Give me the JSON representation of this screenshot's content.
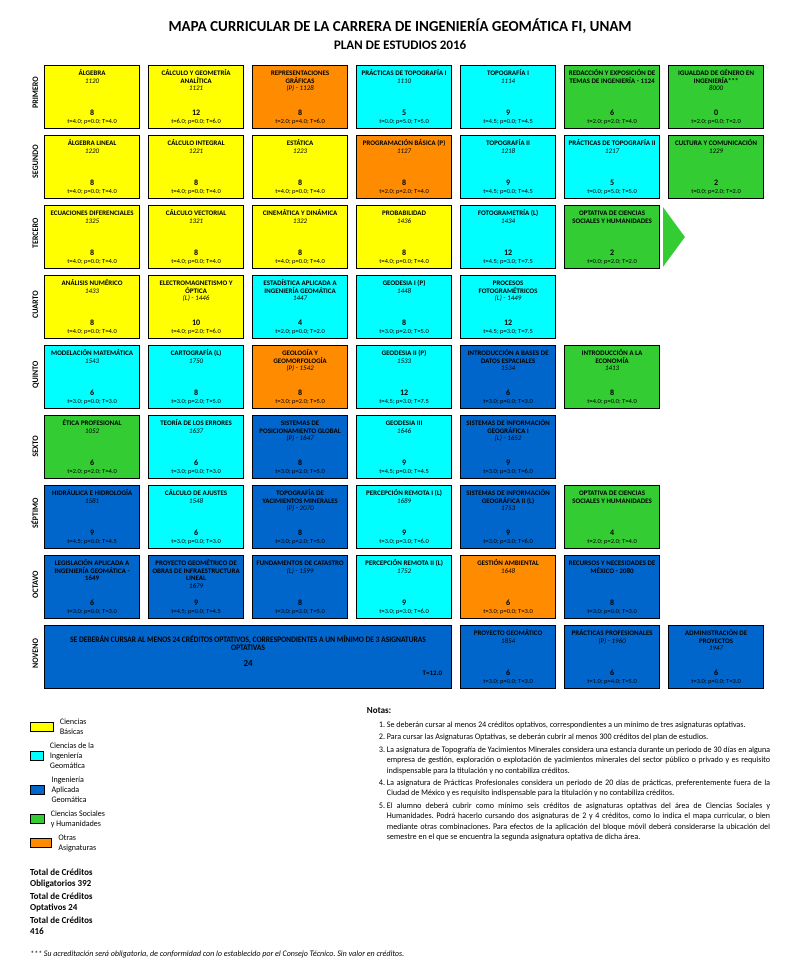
{
  "header": {
    "title": "MAPA CURRICULAR DE LA CARRERA DE INGENIERÍA GEOMÁTICA FI, UNAM",
    "subtitle": "PLAN DE ESTUDIOS 2016"
  },
  "colheaders": [
    "Ciencias Básicas",
    "Ciencias de la Ingeniería Geomática",
    "Ingeniería Aplicada Geomática",
    "Ciencias Sociales y Humanidades",
    "Otras Asignaturas"
  ],
  "colors": {
    "basicas": "#ffff00",
    "ciencias_ing": "#00ffff",
    "aplicada": "#0066cc",
    "sociales": "#33cc33",
    "otras": "#ff8c00"
  },
  "rows": [
    {
      "sem": "PRIMERO",
      "cells": [
        {
          "c": "ybg",
          "name": "ÁLGEBRA",
          "code": "1120",
          "cr": "8",
          "hrs": "t=4.0; p=0.0; T=4.0"
        },
        {
          "c": "ybg",
          "name": "CÁLCULO Y GEOMETRÍA ANALÍTICA",
          "code": "1121",
          "cr": "12",
          "hrs": "t=6.0; p=0.0; T=6.0"
        },
        {
          "c": "orange",
          "name": "REPRESENTACIONES GRÁFICAS",
          "code": "(P) - 1128",
          "cr": "8",
          "hrs": "t=2.0; p=4.0; T=6.0"
        },
        {
          "c": "cyan",
          "name": "PRÁCTICAS DE TOPOGRAFÍA I",
          "code": "1110",
          "cr": "5",
          "hrs": "t=0.0; p=5.0; T=5.0"
        },
        {
          "c": "cyan",
          "name": "TOPOGRAFÍA I",
          "code": "1114",
          "cr": "9",
          "hrs": "t=4.5; p=0.0; T=4.5"
        },
        {
          "c": "green",
          "name": "REDACCIÓN Y EXPOSICIÓN DE TEMAS DE INGENIERÍA - 1124",
          "code": "",
          "cr": "6",
          "hrs": "t=2.0; p=2.0; T=4.0"
        },
        {
          "c": "green",
          "name": "IGUALDAD DE GÉNERO EN INGENIERÍA***",
          "code": "8000",
          "cr": "0",
          "hrs": "t=2.0; p=0.0; T=2.0"
        }
      ]
    },
    {
      "sem": "SEGUNDO",
      "cells": [
        {
          "c": "ybg",
          "name": "ÁLGEBRA LINEAL",
          "code": "1220",
          "cr": "8",
          "hrs": "t=4.0; p=0.0; T=4.0"
        },
        {
          "c": "ybg",
          "name": "CÁLCULO INTEGRAL",
          "code": "1221",
          "cr": "8",
          "hrs": "t=4.0; p=0.0; T=4.0"
        },
        {
          "c": "ybg",
          "name": "ESTÁTICA",
          "code": "1223",
          "cr": "8",
          "hrs": "t=4.0; p=0.0; T=4.0"
        },
        {
          "c": "orange",
          "name": "PROGRAMACIÓN BÁSICA (P)",
          "code": "1127",
          "cr": "8",
          "hrs": "t=2.0; p=2.0; T=4.0"
        },
        {
          "c": "cyan",
          "name": "TOPOGRAFÍA II",
          "code": "1218",
          "cr": "9",
          "hrs": "t=4.5; p=0.0; T=4.5"
        },
        {
          "c": "cyan",
          "name": "PRÁCTICAS DE TOPOGRAFÍA II",
          "code": "1217",
          "cr": "5",
          "hrs": "t=0.0; p=5.0; T=5.0"
        },
        {
          "c": "green",
          "name": "CULTURA Y COMUNICACIÓN",
          "code": "1229",
          "cr": "2",
          "hrs": "t=0.0; p=2.0; T=2.0"
        }
      ]
    },
    {
      "sem": "TERCERO",
      "arrow": true,
      "cells": [
        {
          "c": "ybg",
          "name": "ECUACIONES DIFERENCIALES",
          "code": "1325",
          "cr": "8",
          "hrs": "t=4.0; p=0.0; T=4.0"
        },
        {
          "c": "ybg",
          "name": "CÁLCULO VECTORIAL",
          "code": "1321",
          "cr": "8",
          "hrs": "t=4.0; p=0.0; T=4.0"
        },
        {
          "c": "ybg",
          "name": "CINEMÁTICA Y DINÁMICA",
          "code": "1322",
          "cr": "8",
          "hrs": "t=4.0; p=0.0; T=4.0"
        },
        {
          "c": "ybg",
          "name": "PROBABILIDAD",
          "code": "1436",
          "cr": "8",
          "hrs": "t=4.0; p=0.0; T=4.0"
        },
        {
          "c": "cyan",
          "name": "FOTOGRAMETRÍA (L)",
          "code": "1434",
          "cr": "12",
          "hrs": "t=4.5; p=3.0; T=7.5"
        },
        {
          "c": "green",
          "name": "OPTATIVA DE CIENCIAS SOCIALES Y HUMANIDADES",
          "code": "",
          "cr": "2",
          "hrs": "t=0.0; p=2.0; T=2.0"
        },
        {
          "c": "empty"
        }
      ]
    },
    {
      "sem": "CUARTO",
      "cells": [
        {
          "c": "ybg",
          "name": "ANÁLISIS NUMÉRICO",
          "code": "1433",
          "cr": "8",
          "hrs": "t=4.0; p=0.0; T=4.0"
        },
        {
          "c": "ybg",
          "name": "ELECTROMAGNETISMO Y ÓPTICA",
          "code": "(L) - 1446",
          "cr": "10",
          "hrs": "t=4.0; p=2.0; T=6.0"
        },
        {
          "c": "cyan",
          "name": "ESTADÍSTICA APLICADA A INGENIERÍA GEOMÁTICA",
          "code": "1447",
          "cr": "4",
          "hrs": "t=2.0; p=0.0; T=2.0"
        },
        {
          "c": "cyan",
          "name": "GEODESIA I (P)",
          "code": "1448",
          "cr": "8",
          "hrs": "t=3.0; p=2.0; T=5.0"
        },
        {
          "c": "cyan",
          "name": "PROCESOS FOTOGRAMÉTRICOS",
          "code": "(L) - 1449",
          "cr": "12",
          "hrs": "t=4.5; p=3.0; T=7.5"
        },
        {
          "c": "empty"
        },
        {
          "c": "empty"
        }
      ]
    },
    {
      "sem": "QUINTO",
      "cells": [
        {
          "c": "cyan",
          "name": "MODELACIÓN MATEMÁTICA",
          "code": "1543",
          "cr": "6",
          "hrs": "t=3.0; p=0.0; T=3.0"
        },
        {
          "c": "cyan",
          "name": "CARTOGRAFÍA (L)",
          "code": "1750",
          "cr": "8",
          "hrs": "t=3.0; p=2.0; T=5.0"
        },
        {
          "c": "orange",
          "name": "GEOLOGÍA Y GEOMORFOLOGÍA",
          "code": "(P) - 1542",
          "cr": "8",
          "hrs": "t=3.0; p=2.0; T=5.0"
        },
        {
          "c": "cyan",
          "name": "GEODESIA II (P)",
          "code": "1533",
          "cr": "12",
          "hrs": "t=4.5; p=3.0; T=7.5"
        },
        {
          "c": "blue",
          "name": "INTRODUCCIÓN A BASES DE DATOS ESPACIALES",
          "code": "1534",
          "cr": "6",
          "hrs": "t=3.0; p=0.0; T=3.0"
        },
        {
          "c": "green",
          "name": "INTRODUCCIÓN A LA ECONOMÍA",
          "code": "1413",
          "cr": "8",
          "hrs": "t=4.0; p=0.0; T=4.0"
        },
        {
          "c": "empty"
        }
      ]
    },
    {
      "sem": "SEXTO",
      "cells": [
        {
          "c": "green",
          "name": "ÉTICA PROFESIONAL",
          "code": "1052",
          "cr": "6",
          "hrs": "t=2.0; p=2.0; T=4.0"
        },
        {
          "c": "cyan",
          "name": "TEORÍA DE LOS ERRORES",
          "code": "1637",
          "cr": "6",
          "hrs": "t=3.0; p=0.0; T=3.0"
        },
        {
          "c": "blue",
          "name": "SISTEMAS DE POSICIONAMIENTO GLOBAL",
          "code": "(P) - 1647",
          "cr": "8",
          "hrs": "t=3.0; p=2.0; T=5.0"
        },
        {
          "c": "cyan",
          "name": "GEODESIA III",
          "code": "1646",
          "cr": "9",
          "hrs": "t=4.5; p=0.0; T=4.5"
        },
        {
          "c": "blue",
          "name": "SISTEMAS DE INFORMACIÓN GEOGRÁFICA I",
          "code": "(L) - 1652",
          "cr": "9",
          "hrs": "t=3.0; p=3.0; T=6.0"
        },
        {
          "c": "empty"
        },
        {
          "c": "empty"
        }
      ]
    },
    {
      "sem": "SÉPTIMO",
      "cells": [
        {
          "c": "blue",
          "name": "HIDRÁULICA E HIDROLOGÍA",
          "code": "1581",
          "cr": "9",
          "hrs": "t=4.5; p=0.0; T=4.5"
        },
        {
          "c": "cyan",
          "name": "CÁLCULO DE AJUSTES",
          "code": "1548",
          "cr": "6",
          "hrs": "t=3.0; p=0.0; T=3.0"
        },
        {
          "c": "blue",
          "name": "TOPOGRAFÍA DE YACIMIENTOS MINERALES",
          "code": "(P) - 2070",
          "cr": "8",
          "hrs": "t=3.0; p=2.0; T=5.0"
        },
        {
          "c": "cyan",
          "name": "PERCEPCIÓN REMOTA I (L)",
          "code": "1689",
          "cr": "9",
          "hrs": "t=3.0; p=3.0; T=6.0"
        },
        {
          "c": "blue",
          "name": "SISTEMAS DE INFORMACIÓN GEOGRÁFICA II (L)",
          "code": "1753",
          "cr": "9",
          "hrs": "t=3.0; p=3.0; T=6.0"
        },
        {
          "c": "green",
          "name": "OPTATIVA DE CIENCIAS SOCIALES Y HUMANIDADES",
          "code": "",
          "cr": "4",
          "hrs": "t=2.0; p=2.0; T=4.0"
        },
        {
          "c": "empty"
        }
      ]
    },
    {
      "sem": "OCTAVO",
      "cells": [
        {
          "c": "blue",
          "name": "LEGISLACIÓN APLICADA A INGENIERÍA GEOMÁTICA - 1649",
          "code": "",
          "cr": "6",
          "hrs": "t=3.0; p=0.0; T=3.0"
        },
        {
          "c": "blue",
          "name": "PROYECTO GEOMÉTRICO DE OBRAS DE INFRAESTRUCTURA LINEAL",
          "code": "1679",
          "cr": "9",
          "hrs": "t=4.5; p=0.0; T=4.5"
        },
        {
          "c": "blue",
          "name": "FUNDAMENTOS DE CATASTRO",
          "code": "(L) - 1599",
          "cr": "8",
          "hrs": "t=3.0; p=2.0; T=5.0"
        },
        {
          "c": "cyan",
          "name": "PERCEPCIÓN REMOTA II (L)",
          "code": "1752",
          "cr": "9",
          "hrs": "t=3.0; p=3.0; T=6.0"
        },
        {
          "c": "orange",
          "name": "GESTIÓN AMBIENTAL",
          "code": "1648",
          "cr": "6",
          "hrs": "t=3.0; p=0.0; T=3.0"
        },
        {
          "c": "blue",
          "name": "RECURSOS Y NECESIDADES DE MÉXICO - 2080",
          "code": "",
          "cr": "8",
          "hrs": "t=3.0; p=0.0; T=3.0"
        },
        {
          "c": "empty"
        }
      ]
    },
    {
      "sem": "NOVENO",
      "cells": [
        {
          "wide": true,
          "c": "blue",
          "text": "SE DEBERÁN CURSAR AL MENOS 24 CRÉDITOS OPTATIVOS, CORRESPONDIENTES A UN MÍNIMO DE 3 ASIGNATURAS OPTATIVAS",
          "cr": "24",
          "tt": "T=12.0"
        },
        {
          "c": "blue",
          "name": "PROYECTO GEOMÁTICO",
          "code": "1854",
          "cr": "6",
          "hrs": "t=3.0; p=0.0; T=3.0"
        },
        {
          "c": "blue",
          "name": "PRÁCTICAS PROFESIONALES",
          "code": "(P) - 1960",
          "cr": "6",
          "hrs": "t=1.0; p=4.0; T=5.0"
        },
        {
          "c": "blue",
          "name": "ADMINISTRACIÓN DE PROYECTOS",
          "code": "1947",
          "cr": "6",
          "hrs": "t=3.0; p=0.0; T=3.0"
        }
      ]
    }
  ],
  "legend": [
    {
      "c": "#ffff00",
      "t": "Ciencias Básicas"
    },
    {
      "c": "#00ffff",
      "t": "Ciencias de la Ingeniería Geomática"
    },
    {
      "c": "#0066cc",
      "t": "Ingeniería Aplicada Geomática"
    },
    {
      "c": "#33cc33",
      "t": "Ciencias Sociales y Humanidades"
    },
    {
      "c": "#ff8c00",
      "t": "Otras Asignaturas"
    }
  ],
  "totals": {
    "obl": "Total de Créditos Obligatorios 392",
    "opt": "Total de Créditos Optativos 24",
    "tot": "Total de Créditos 416"
  },
  "notes_title": "Notas:",
  "notes": [
    "Se deberán cursar al menos 24 créditos optativos, correspondientes a un mínimo de tres asignaturas optativas.",
    "Para cursar las Asignaturas Optativas, se deberán cubrir al menos 300 créditos del plan de estudios.",
    "La asignatura de Topografía de Yacimientos Minerales considera una estancia durante un periodo de 30 días en alguna empresa de gestión, exploración o explotación de yacimientos minerales del sector público o privado y es requisito indispensable para la titulación y no contabiliza créditos.",
    "La asignatura de Prácticas Profesionales considera un periodo de 20 días de prácticas, preferentemente fuera de la Ciudad de México y es requisito indispensable para la titulación y no contabiliza créditos.",
    "El alumno deberá cubrir como mínimo seis créditos de asignaturas optativas del área de Ciencias Sociales y Humanidades. Podrá hacerlo cursando dos asignaturas de 2 y 4 créditos, como lo indica el mapa curricular, o bien mediante otras combinaciones. Para efectos de la aplicación del bloque móvil deberá considerarse la ubicación del semestre en el que se encuentra la segunda asignatura optativa de dicha área."
  ],
  "foot": "*** Su acreditación será obligatoria, de conformidad con lo establecido por el Consejo Técnico. Sin valor en créditos."
}
